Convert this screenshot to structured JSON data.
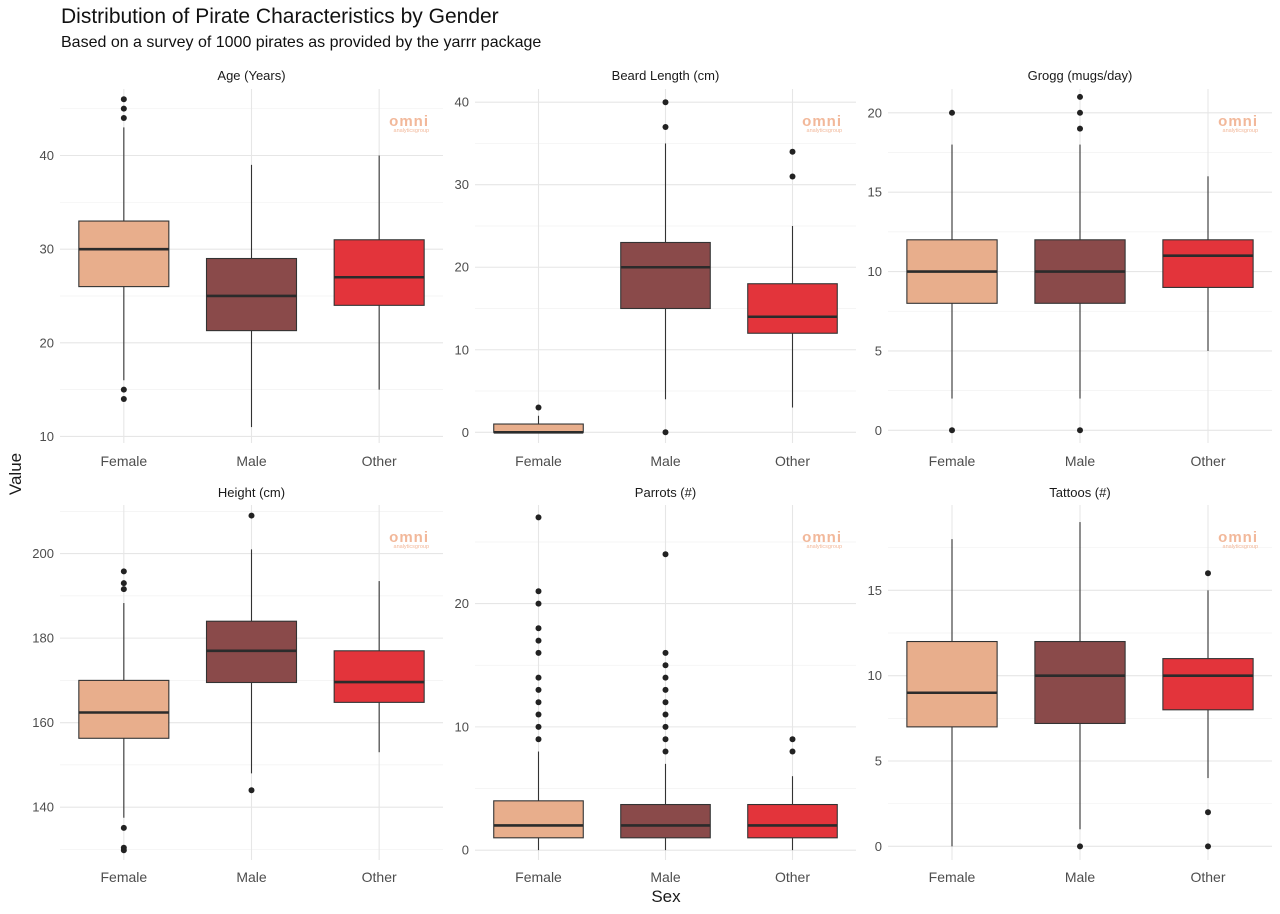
{
  "chart_data": {
    "type": "boxplot",
    "title": "Distribution of Pirate Characteristics by Gender",
    "subtitle": "Based on a survey of 1000 pirates as provided by the yarrr package",
    "xlabel": "Sex",
    "ylabel": "Value",
    "categories": [
      "Female",
      "Male",
      "Other"
    ],
    "colors": [
      "#e8ae8c",
      "#8a4a4a",
      "#e3343b"
    ],
    "watermark": {
      "line1": "omni",
      "line2": "analyticsgroup",
      "color": "#f2b89a"
    },
    "panels": [
      {
        "title": "Age (Years)",
        "ylim": [
          9.3,
          47.1
        ],
        "yticks": [
          10,
          20,
          30,
          40
        ],
        "boxes": [
          {
            "category": "Female",
            "whisker_low": 16,
            "q1": 26,
            "median": 30,
            "q3": 33,
            "whisker_high": 43,
            "outliers": [
              14,
              15,
              44,
              45,
              46
            ]
          },
          {
            "category": "Male",
            "whisker_low": 11,
            "q1": 21.3,
            "median": 25,
            "q3": 29,
            "whisker_high": 39,
            "outliers": []
          },
          {
            "category": "Other",
            "whisker_low": 15,
            "q1": 24,
            "median": 27,
            "q3": 31,
            "whisker_high": 40,
            "outliers": []
          }
        ]
      },
      {
        "title": "Beard Length (cm)",
        "ylim": [
          -1.3,
          41.6
        ],
        "yticks": [
          0,
          10,
          20,
          30,
          40
        ],
        "boxes": [
          {
            "category": "Female",
            "whisker_low": 0,
            "q1": 0,
            "median": 0,
            "q3": 1,
            "whisker_high": 2,
            "outliers": [
              3
            ]
          },
          {
            "category": "Male",
            "whisker_low": 4,
            "q1": 15,
            "median": 20,
            "q3": 23,
            "whisker_high": 35,
            "outliers": [
              0,
              37,
              40
            ]
          },
          {
            "category": "Other",
            "whisker_low": 3,
            "q1": 12,
            "median": 14,
            "q3": 18,
            "whisker_high": 25,
            "outliers": [
              31,
              34
            ]
          }
        ]
      },
      {
        "title": "Grogg (mugs/day)",
        "ylim": [
          -0.8,
          21.5
        ],
        "yticks": [
          0,
          5,
          10,
          15,
          20
        ],
        "boxes": [
          {
            "category": "Female",
            "whisker_low": 2,
            "q1": 8,
            "median": 10,
            "q3": 12,
            "whisker_high": 18,
            "outliers": [
              0,
              20
            ]
          },
          {
            "category": "Male",
            "whisker_low": 2,
            "q1": 8,
            "median": 10,
            "q3": 12,
            "whisker_high": 18,
            "outliers": [
              0,
              19,
              20,
              21
            ]
          },
          {
            "category": "Other",
            "whisker_low": 5,
            "q1": 9,
            "median": 11,
            "q3": 12,
            "whisker_high": 16,
            "outliers": []
          }
        ]
      },
      {
        "title": "Height (cm)",
        "ylim": [
          127.5,
          211.5
        ],
        "yticks": [
          140,
          160,
          180,
          200
        ],
        "boxes": [
          {
            "category": "Female",
            "whisker_low": 137.5,
            "q1": 156.3,
            "median": 162.4,
            "q3": 170,
            "whisker_high": 188.3,
            "outliers": [
              129.8,
              130.4,
              135.1,
              191.6,
              193,
              195.8
            ]
          },
          {
            "category": "Male",
            "whisker_low": 148,
            "q1": 169.5,
            "median": 177,
            "q3": 184,
            "whisker_high": 201,
            "outliers": [
              144,
              209
            ]
          },
          {
            "category": "Other",
            "whisker_low": 153,
            "q1": 164.8,
            "median": 169.6,
            "q3": 177,
            "whisker_high": 193.5,
            "outliers": []
          }
        ]
      },
      {
        "title": "Parrots (#)",
        "ylim": [
          -0.8,
          28
        ],
        "yticks": [
          0,
          10,
          20
        ],
        "boxes": [
          {
            "category": "Female",
            "whisker_low": 0,
            "q1": 1,
            "median": 2,
            "q3": 4,
            "whisker_high": 8,
            "outliers": [
              9,
              10,
              11,
              12,
              13,
              14,
              16,
              17,
              18,
              20,
              21,
              27
            ]
          },
          {
            "category": "Male",
            "whisker_low": 0,
            "q1": 1,
            "median": 2,
            "q3": 3.7,
            "whisker_high": 7,
            "outliers": [
              8,
              9,
              10,
              11,
              12,
              13,
              14,
              15,
              16,
              24
            ]
          },
          {
            "category": "Other",
            "whisker_low": 0,
            "q1": 1,
            "median": 2,
            "q3": 3.7,
            "whisker_high": 6,
            "outliers": [
              8,
              9
            ]
          }
        ]
      },
      {
        "title": "Tattoos (#)",
        "ylim": [
          -0.8,
          20
        ],
        "yticks": [
          0,
          5,
          10,
          15
        ],
        "boxes": [
          {
            "category": "Female",
            "whisker_low": 0,
            "q1": 7,
            "median": 9,
            "q3": 12,
            "whisker_high": 18,
            "outliers": []
          },
          {
            "category": "Male",
            "whisker_low": 1,
            "q1": 7.2,
            "median": 10,
            "q3": 12,
            "whisker_high": 19,
            "outliers": [
              0
            ]
          },
          {
            "category": "Other",
            "whisker_low": 4,
            "q1": 8,
            "median": 10,
            "q3": 11,
            "whisker_high": 15,
            "outliers": [
              0,
              2,
              16
            ]
          }
        ]
      }
    ]
  }
}
